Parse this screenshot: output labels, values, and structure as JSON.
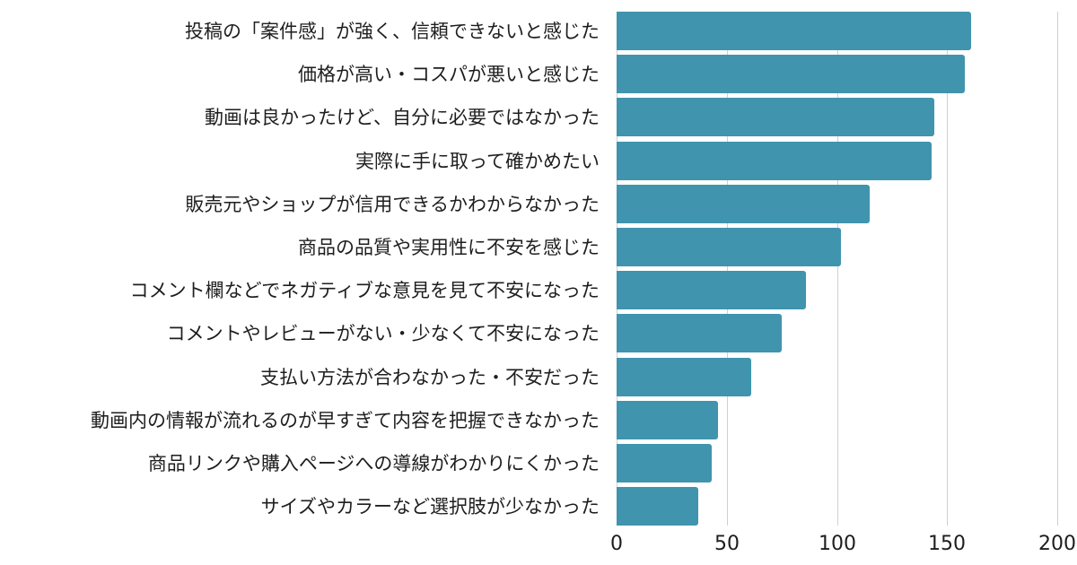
{
  "chart_data": {
    "type": "bar",
    "orientation": "horizontal",
    "title": "",
    "xlabel": "",
    "ylabel": "",
    "xlim": [
      0,
      200
    ],
    "x_ticks": [
      "0",
      "50",
      "100",
      "150",
      "200"
    ],
    "grid": true,
    "legend": null,
    "bar_color": "#4094ad",
    "categories": [
      "投稿の「案件感」が強く、信頼できないと感じた",
      "価格が高い・コスパが悪いと感じた",
      "動画は良かったけど、自分に必要ではなかった",
      "実際に手に取って確かめたい",
      "販売元やショップが信用できるかわからなかった",
      "商品の品質や実用性に不安を感じた",
      "コメント欄などでネガティブな意見を見て不安になった",
      "コメントやレビューがない・少なくて不安になった",
      "支払い方法が合わなかった・不安だった",
      "動画内の情報が流れるのが早すぎて内容を把握できなかった",
      "商品リンクや購入ページへの導線がわかりにくかった",
      "サイズやカラーなど選択肢が少なかった"
    ],
    "values": [
      161,
      158,
      144,
      143,
      115,
      102,
      86,
      75,
      61,
      46,
      43,
      37
    ]
  }
}
